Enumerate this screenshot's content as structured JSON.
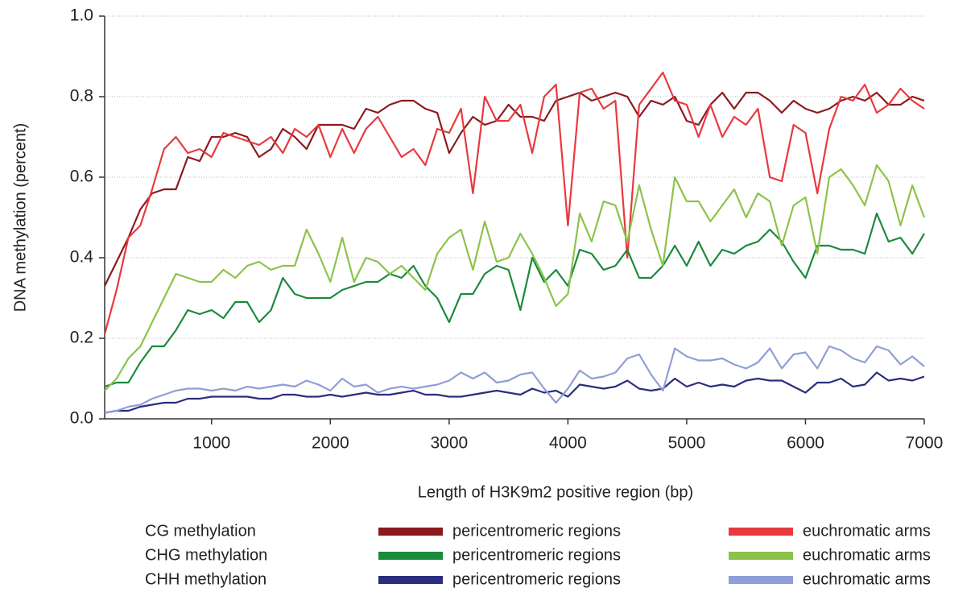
{
  "chart_data": {
    "type": "line",
    "xlabel": "Length of H3K9m2 positive region (bp)",
    "ylabel": "DNA methylation (percent)",
    "x": [
      100,
      200,
      300,
      400,
      500,
      600,
      700,
      800,
      900,
      1000,
      1100,
      1200,
      1300,
      1400,
      1500,
      1600,
      1700,
      1800,
      1900,
      2000,
      2100,
      2200,
      2300,
      2400,
      2500,
      2600,
      2700,
      2800,
      2900,
      3000,
      3100,
      3200,
      3300,
      3400,
      3500,
      3600,
      3700,
      3800,
      3900,
      4000,
      4100,
      4200,
      4300,
      4400,
      4500,
      4600,
      4700,
      4800,
      4900,
      5000,
      5100,
      5200,
      5300,
      5400,
      5500,
      5600,
      5700,
      5800,
      5900,
      6000,
      6100,
      6200,
      6300,
      6400,
      6500,
      6600,
      6700,
      6800,
      6900,
      7000
    ],
    "legend_rows": [
      "CG methylation",
      "CHG methylation",
      "CHH methylation"
    ],
    "series": [
      {
        "name": "pericentromeric regions",
        "color": "#8b1a1f",
        "values": [
          0.33,
          0.39,
          0.45,
          0.52,
          0.56,
          0.57,
          0.57,
          0.65,
          0.64,
          0.7,
          0.7,
          0.71,
          0.7,
          0.65,
          0.67,
          0.72,
          0.7,
          0.67,
          0.73,
          0.73,
          0.73,
          0.72,
          0.77,
          0.76,
          0.78,
          0.79,
          0.79,
          0.77,
          0.76,
          0.66,
          0.71,
          0.75,
          0.73,
          0.74,
          0.78,
          0.75,
          0.75,
          0.74,
          0.79,
          0.8,
          0.81,
          0.79,
          0.8,
          0.81,
          0.8,
          0.75,
          0.79,
          0.78,
          0.8,
          0.74,
          0.73,
          0.78,
          0.81,
          0.77,
          0.81,
          0.81,
          0.79,
          0.76,
          0.79,
          0.77,
          0.76,
          0.77,
          0.79,
          0.8,
          0.79,
          0.81,
          0.78,
          0.78,
          0.8,
          0.79
        ]
      },
      {
        "name": "euchromatic arms",
        "color": "#e8393f",
        "values": [
          0.21,
          0.32,
          0.45,
          0.48,
          0.57,
          0.67,
          0.7,
          0.66,
          0.67,
          0.65,
          0.71,
          0.7,
          0.69,
          0.68,
          0.7,
          0.66,
          0.72,
          0.7,
          0.73,
          0.65,
          0.72,
          0.66,
          0.72,
          0.75,
          0.7,
          0.65,
          0.67,
          0.63,
          0.72,
          0.71,
          0.77,
          0.56,
          0.8,
          0.74,
          0.74,
          0.78,
          0.66,
          0.8,
          0.83,
          0.48,
          0.81,
          0.82,
          0.77,
          0.79,
          0.4,
          0.78,
          0.82,
          0.86,
          0.79,
          0.78,
          0.7,
          0.78,
          0.7,
          0.75,
          0.73,
          0.77,
          0.6,
          0.59,
          0.73,
          0.71,
          0.56,
          0.72,
          0.8,
          0.79,
          0.83,
          0.76,
          0.78,
          0.82,
          0.79,
          0.77
        ]
      },
      {
        "name": "pericentromeric regions",
        "color": "#1a8a3c",
        "values": [
          0.08,
          0.09,
          0.09,
          0.14,
          0.18,
          0.18,
          0.22,
          0.27,
          0.26,
          0.27,
          0.25,
          0.29,
          0.29,
          0.24,
          0.27,
          0.35,
          0.31,
          0.3,
          0.3,
          0.3,
          0.32,
          0.33,
          0.34,
          0.34,
          0.36,
          0.35,
          0.38,
          0.33,
          0.3,
          0.24,
          0.31,
          0.31,
          0.36,
          0.38,
          0.37,
          0.27,
          0.4,
          0.34,
          0.37,
          0.33,
          0.42,
          0.41,
          0.37,
          0.38,
          0.42,
          0.35,
          0.35,
          0.38,
          0.43,
          0.38,
          0.44,
          0.38,
          0.42,
          0.41,
          0.43,
          0.44,
          0.47,
          0.44,
          0.39,
          0.35,
          0.43,
          0.43,
          0.42,
          0.42,
          0.41,
          0.51,
          0.44,
          0.45,
          0.41,
          0.46
        ]
      },
      {
        "name": "euchromatic arms",
        "color": "#8bc34a",
        "values": [
          0.07,
          0.1,
          0.15,
          0.18,
          0.24,
          0.3,
          0.36,
          0.35,
          0.34,
          0.34,
          0.37,
          0.35,
          0.38,
          0.39,
          0.37,
          0.38,
          0.38,
          0.47,
          0.41,
          0.34,
          0.45,
          0.34,
          0.4,
          0.39,
          0.36,
          0.38,
          0.35,
          0.32,
          0.41,
          0.45,
          0.47,
          0.37,
          0.49,
          0.39,
          0.4,
          0.46,
          0.41,
          0.35,
          0.28,
          0.31,
          0.51,
          0.44,
          0.54,
          0.53,
          0.44,
          0.58,
          0.47,
          0.38,
          0.6,
          0.54,
          0.54,
          0.49,
          0.53,
          0.57,
          0.5,
          0.56,
          0.54,
          0.43,
          0.53,
          0.55,
          0.41,
          0.6,
          0.62,
          0.58,
          0.53,
          0.63,
          0.59,
          0.48,
          0.58,
          0.5
        ]
      },
      {
        "name": "pericentromeric regions",
        "color": "#2b2d7e",
        "values": [
          0.015,
          0.02,
          0.02,
          0.03,
          0.035,
          0.04,
          0.04,
          0.05,
          0.05,
          0.055,
          0.055,
          0.055,
          0.055,
          0.05,
          0.05,
          0.06,
          0.06,
          0.055,
          0.055,
          0.06,
          0.055,
          0.06,
          0.065,
          0.06,
          0.06,
          0.065,
          0.07,
          0.06,
          0.06,
          0.055,
          0.055,
          0.06,
          0.065,
          0.07,
          0.065,
          0.06,
          0.075,
          0.065,
          0.07,
          0.055,
          0.085,
          0.08,
          0.075,
          0.08,
          0.095,
          0.075,
          0.07,
          0.075,
          0.1,
          0.08,
          0.09,
          0.08,
          0.085,
          0.08,
          0.095,
          0.1,
          0.095,
          0.095,
          0.08,
          0.065,
          0.09,
          0.09,
          0.1,
          0.08,
          0.085,
          0.115,
          0.095,
          0.1,
          0.095,
          0.105
        ]
      },
      {
        "name": "euchromatic arms",
        "color": "#8e9fd6",
        "values": [
          0.015,
          0.02,
          0.03,
          0.035,
          0.05,
          0.06,
          0.07,
          0.075,
          0.075,
          0.07,
          0.075,
          0.07,
          0.08,
          0.075,
          0.08,
          0.085,
          0.08,
          0.095,
          0.085,
          0.07,
          0.1,
          0.08,
          0.085,
          0.065,
          0.075,
          0.08,
          0.075,
          0.08,
          0.085,
          0.095,
          0.115,
          0.1,
          0.115,
          0.09,
          0.095,
          0.11,
          0.115,
          0.075,
          0.04,
          0.075,
          0.12,
          0.1,
          0.105,
          0.115,
          0.15,
          0.16,
          0.11,
          0.07,
          0.175,
          0.155,
          0.145,
          0.145,
          0.15,
          0.135,
          0.125,
          0.14,
          0.175,
          0.125,
          0.16,
          0.165,
          0.125,
          0.18,
          0.17,
          0.15,
          0.14,
          0.18,
          0.17,
          0.135,
          0.155,
          0.13
        ]
      }
    ],
    "xlim": [
      100,
      7000
    ],
    "xticks": [
      1000,
      2000,
      3000,
      4000,
      5000,
      6000,
      7000
    ],
    "ylim": [
      0,
      1
    ],
    "yticks": [
      {
        "value": 0,
        "label": "0.0"
      },
      {
        "value": 0.2,
        "label": "0.2"
      },
      {
        "value": 0.4,
        "label": "0.4"
      },
      {
        "value": 0.6,
        "label": "0.6"
      },
      {
        "value": 0.8,
        "label": "0.8"
      },
      {
        "value": 1,
        "label": "1.0"
      }
    ],
    "grid": true
  }
}
